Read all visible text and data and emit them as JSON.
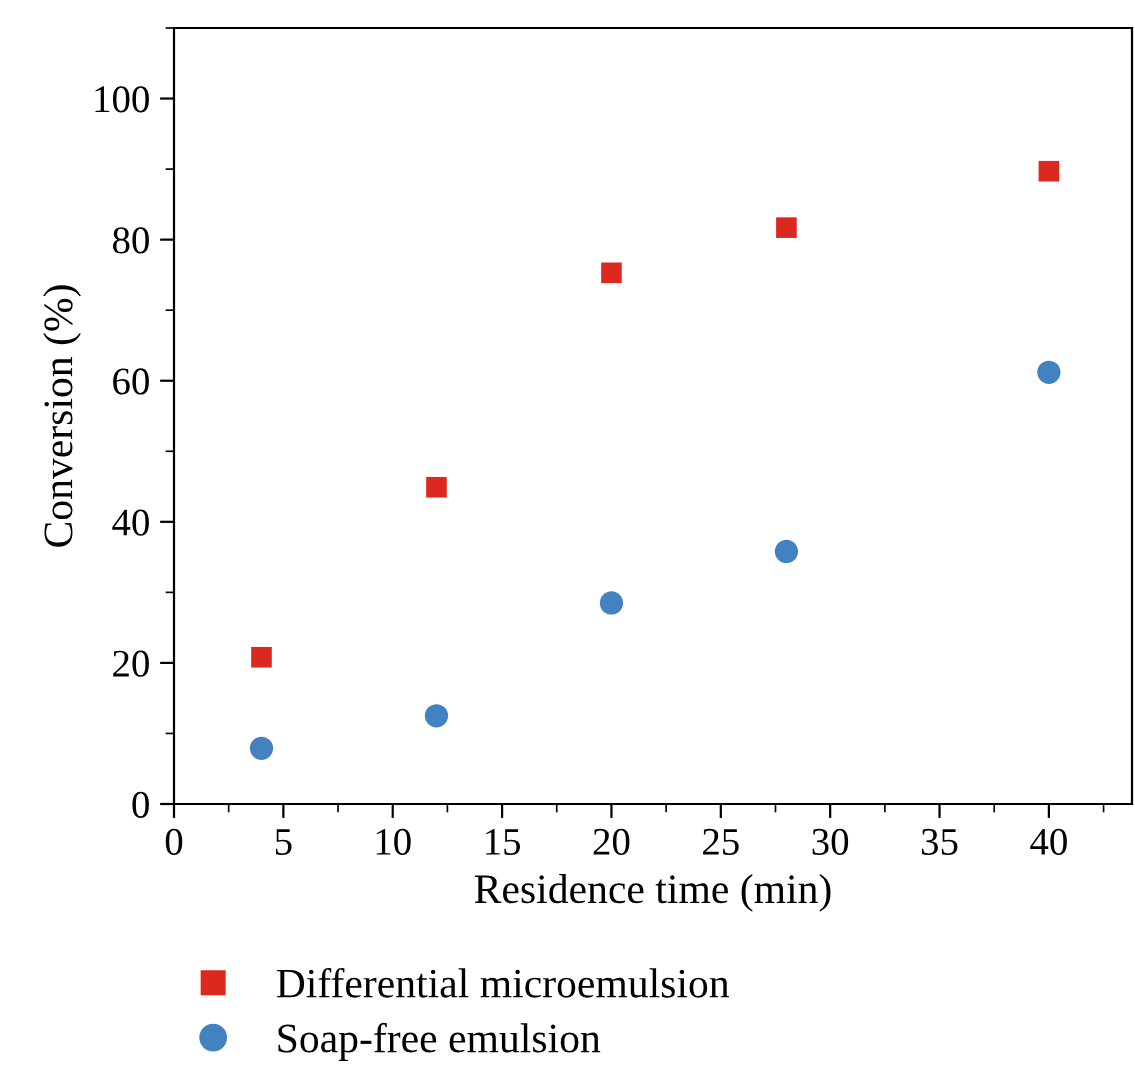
{
  "chart_data": {
    "type": "scatter",
    "xlabel": "Residence time (min)",
    "ylabel": "Conversion (%)",
    "xlim": [
      0,
      43.8
    ],
    "ylim": [
      0,
      110
    ],
    "xticks": [
      0,
      5,
      10,
      15,
      20,
      25,
      30,
      35,
      40
    ],
    "yticks": [
      0,
      20,
      40,
      60,
      80,
      100
    ],
    "grid": false,
    "legend": "bottom",
    "series": [
      {
        "name": "Differential microemulsion",
        "color": "#dc281e",
        "marker": "square",
        "x": [
          4,
          12,
          20,
          28,
          40
        ],
        "values": [
          20.8,
          44.9,
          75.3,
          81.7,
          89.7
        ]
      },
      {
        "name": "Soap-free emulsion",
        "color": "#4382c0",
        "marker": "circle",
        "x": [
          4,
          12,
          20,
          28,
          40
        ],
        "values": [
          7.9,
          12.5,
          28.5,
          35.8,
          61.2
        ]
      }
    ]
  }
}
